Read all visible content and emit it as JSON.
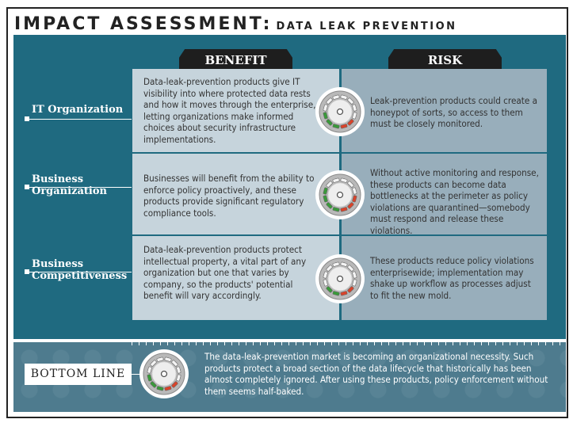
{
  "title": {
    "main": "IMPACT ASSESSMENT:",
    "sub": "DATA LEAK PREVENTION"
  },
  "columns": {
    "benefit": "BENEFIT",
    "risk": "RISK"
  },
  "colors": {
    "panel": "#1f6a80",
    "benefit_cell": "#c6d4dc",
    "risk_cell": "#98aebb",
    "gauge_green": "#3a9a3a",
    "gauge_red": "#d9432a"
  },
  "rows": [
    {
      "label": "IT Organization",
      "benefit": "Data-leak-prevention products give IT visibility into where protected data rests and how it moves through the enterprise, letting organizations make informed choices about security infrastructure implementations.",
      "risk": "Leak-prevention products could create a honeypot of sorts, so access to them must be closely monitored.",
      "gauge": {
        "icon": "gauge-icon",
        "green_segments": 3,
        "red_segments": 2,
        "total_segments": 12
      }
    },
    {
      "label": "Business Organization",
      "benefit": "Businesses will benefit from the ability to enforce policy proactively, and these products provide significant regulatory compliance tools.",
      "risk": "Without active monitoring and response, these products can become data bottlenecks at the perimeter as policy violations are quarantined—somebody must respond and release these violations.",
      "gauge": {
        "icon": "gauge-icon",
        "green_segments": 4,
        "red_segments": 3,
        "total_segments": 12
      }
    },
    {
      "label": "Business Competitiveness",
      "benefit": "Data-leak-prevention products protect intellectual property, a vital part of any organization but one that varies by company, so the products' potential benefit will vary accordingly.",
      "risk": "These products reduce policy violations enterprisewide; implementation may shake up workflow as processes adjust to fit the new mold.",
      "gauge": {
        "icon": "gauge-icon",
        "green_segments": 2,
        "red_segments": 2,
        "total_segments": 12
      }
    }
  ],
  "bottom_line": {
    "label": "BOTTOM LINE",
    "text": "The data-leak-prevention market is becoming an organizational necessity. Such products protect a broad section of the data lifecycle that historically has been almost completely ignored. After using these products, policy enforcement without them seems half-baked.",
    "gauge": {
      "icon": "gauge-icon",
      "green_segments": 3,
      "red_segments": 2,
      "total_segments": 12
    }
  }
}
